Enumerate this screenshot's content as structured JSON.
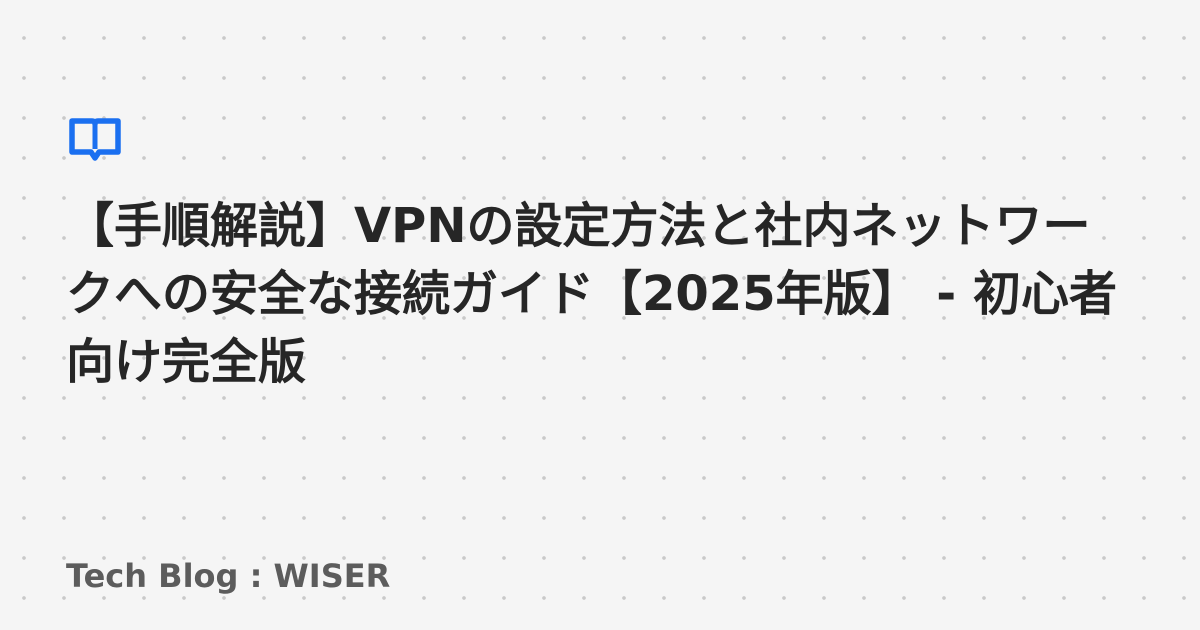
{
  "article": {
    "title": "【手順解説】VPNの設定方法と社内ネットワークへの安全な接続ガイド【2025年版】 - 初心者向け完全版"
  },
  "site": {
    "name": "Tech Blog : WISER"
  },
  "colors": {
    "accent": "#1a6ff0",
    "title": "#262626",
    "site_name": "#5c5c5c",
    "background": "#f5f5f5",
    "dots": "#c9c9c9"
  },
  "icons": {
    "logo": "open-book-speech-bubble-icon"
  }
}
